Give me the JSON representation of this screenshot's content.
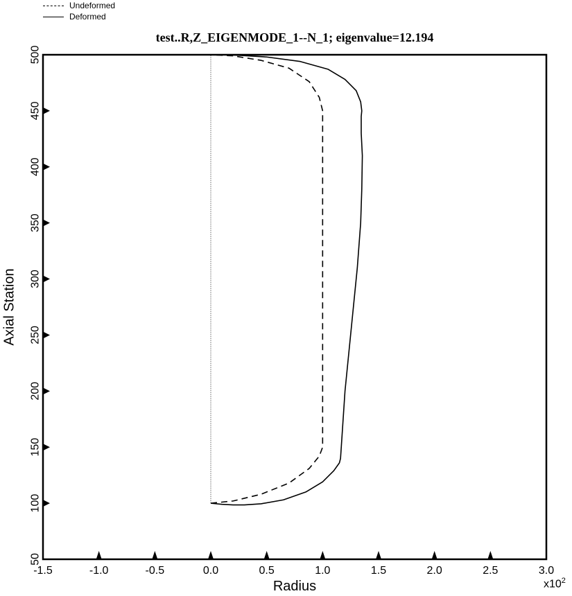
{
  "chart_data": {
    "type": "line",
    "title": "test..R,Z_EIGENMODE_1--N_1; eigenvalue=12.194",
    "xlabel": "Radius",
    "ylabel": "Axial Station",
    "x_multiplier_base": "x10",
    "x_multiplier_exp": "2",
    "xlim": [
      -1.5,
      3.0
    ],
    "ylim": [
      50,
      500
    ],
    "x_ticks": [
      -1.5,
      -1.0,
      -0.5,
      0.0,
      0.5,
      1.0,
      1.5,
      2.0,
      2.5,
      3.0
    ],
    "x_tick_labels": [
      "-1.5",
      "-1.0",
      "-0.5",
      "0.0",
      "0.5",
      "1.0",
      "1.5",
      "2.0",
      "2.5",
      "3.0"
    ],
    "y_ticks": [
      50,
      100,
      150,
      200,
      250,
      300,
      350,
      400,
      450,
      500
    ],
    "y_tick_labels": [
      "50",
      "100",
      "150",
      "200",
      "250",
      "300",
      "350",
      "400",
      "450",
      "500"
    ],
    "grid": false,
    "legend_position": "above plot, top-left",
    "series": [
      {
        "name": "Undeformed",
        "style": "dashed",
        "color": "#000000",
        "x": [
          0.0,
          0.2,
          0.45,
          0.7,
          0.88,
          0.97,
          1.0,
          1.0,
          1.0,
          0.97,
          0.88,
          0.7,
          0.45,
          0.2,
          0.0
        ],
        "y": [
          100,
          102,
          108,
          118,
          131,
          142,
          150,
          300,
          450,
          462,
          476,
          488,
          495,
          499,
          500
        ]
      },
      {
        "name": "Deformed",
        "style": "solid",
        "color": "#000000",
        "x": [
          0.0,
          0.1,
          0.2,
          0.3,
          0.45,
          0.65,
          0.85,
          1.0,
          1.1,
          1.15,
          1.16,
          1.2,
          1.26,
          1.31,
          1.34,
          1.35,
          1.355,
          1.345,
          1.345,
          1.35,
          1.34,
          1.3,
          1.2,
          1.05,
          0.8,
          0.5,
          0.25,
          0.1,
          0.0
        ],
        "y": [
          100,
          99,
          98.5,
          98.5,
          99.5,
          103,
          110,
          119,
          129,
          136,
          140,
          200,
          260,
          310,
          350,
          380,
          410,
          430,
          445,
          450,
          458,
          468,
          478,
          487,
          494,
          498,
          499.5,
          500,
          500
        ]
      }
    ],
    "reference_line": {
      "x": 0.0,
      "from_y": 100,
      "to_y": 500
    }
  }
}
